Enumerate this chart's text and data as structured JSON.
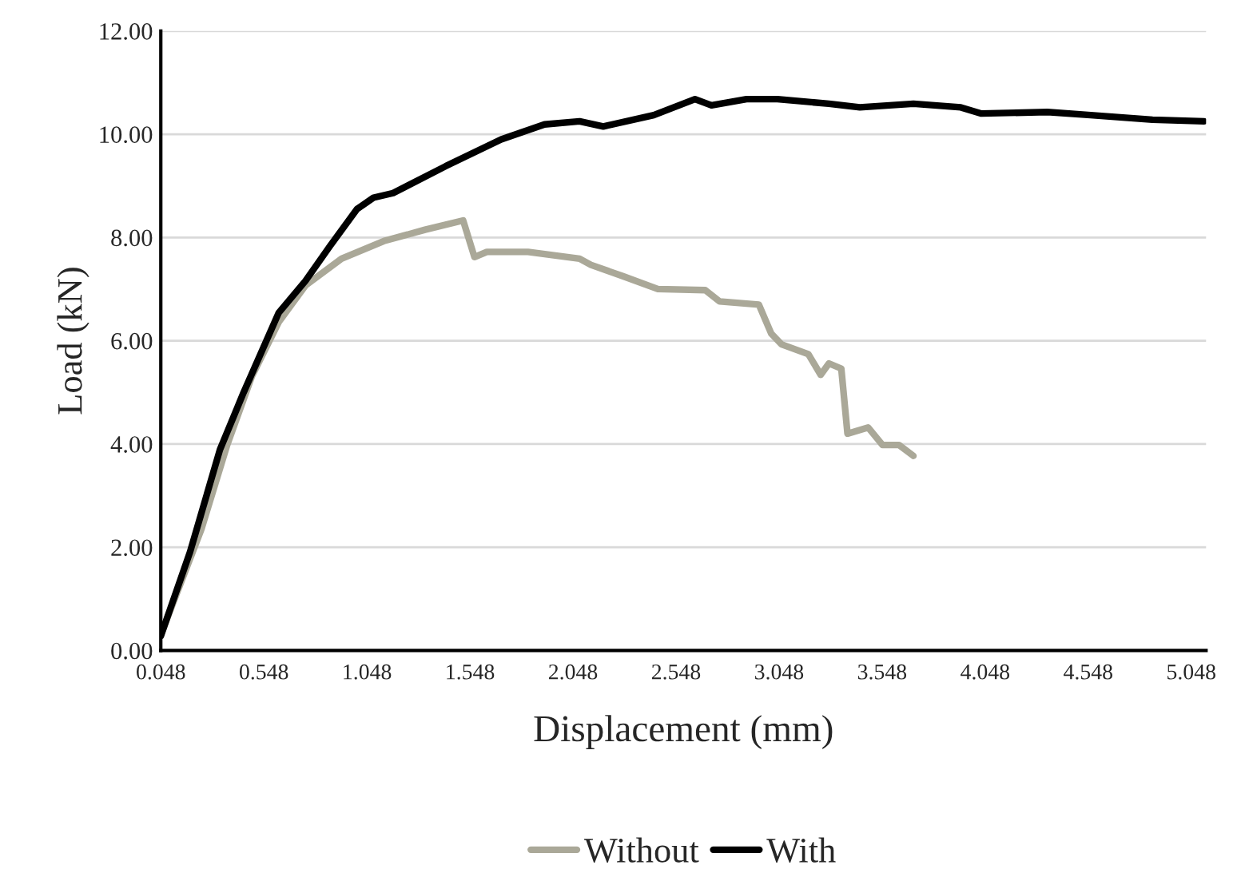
{
  "chart_data": {
    "type": "line",
    "xlabel": "Displacement (mm)",
    "ylabel": "Load (kN)",
    "xlim": [
      0.048,
      5.12
    ],
    "xticks": [
      0.048,
      0.548,
      1.048,
      1.548,
      2.048,
      2.548,
      3.048,
      3.548,
      4.048,
      4.548,
      5.048
    ],
    "ylim": [
      0,
      12
    ],
    "yticks": [
      {
        "value": 0,
        "label": "0.00"
      },
      {
        "value": 2,
        "label": "2.00"
      },
      {
        "value": 4,
        "label": "4.00"
      },
      {
        "value": 6,
        "label": "6.00"
      },
      {
        "value": 8,
        "label": "8.00"
      },
      {
        "value": 10,
        "label": "10.00"
      },
      {
        "value": 12,
        "label": "12.00"
      }
    ],
    "grid": "y",
    "legend": "bottom",
    "marker": "none",
    "line_style": "solid",
    "series": [
      {
        "name": "Without",
        "color": "#aaa898",
        "x": [
          0.048,
          0.245,
          0.37,
          0.49,
          0.62,
          0.75,
          0.925,
          1.13,
          1.33,
          1.515,
          1.57,
          1.63,
          1.83,
          2.08,
          2.135,
          2.29,
          2.46,
          2.69,
          2.76,
          2.95,
          3.01,
          3.06,
          3.19,
          3.25,
          3.29,
          3.35,
          3.38,
          3.48,
          3.55,
          3.63,
          3.7
        ],
        "values": [
          0.3,
          2.35,
          3.98,
          5.31,
          6.36,
          7.07,
          7.59,
          7.93,
          8.15,
          8.33,
          7.62,
          7.72,
          7.72,
          7.59,
          7.47,
          7.25,
          7.0,
          6.98,
          6.76,
          6.7,
          6.14,
          5.93,
          5.74,
          5.34,
          5.56,
          5.46,
          4.2,
          4.32,
          3.98,
          3.98,
          3.77
        ]
      },
      {
        "name": "With",
        "color": "#000000",
        "x": [
          0.048,
          0.19,
          0.335,
          0.45,
          0.62,
          0.75,
          0.87,
          1.0,
          1.08,
          1.175,
          1.43,
          1.7,
          1.91,
          2.08,
          2.195,
          2.44,
          2.64,
          2.72,
          2.89,
          3.04,
          3.29,
          3.44,
          3.7,
          3.93,
          4.03,
          4.35,
          4.56,
          4.86,
          5.11
        ],
        "values": [
          0.28,
          1.91,
          3.89,
          5.0,
          6.54,
          7.16,
          7.84,
          8.55,
          8.77,
          8.86,
          9.38,
          9.9,
          10.19,
          10.25,
          10.15,
          10.37,
          10.68,
          10.56,
          10.68,
          10.68,
          10.59,
          10.52,
          10.59,
          10.52,
          10.4,
          10.43,
          10.37,
          10.28,
          10.25
        ]
      }
    ]
  }
}
